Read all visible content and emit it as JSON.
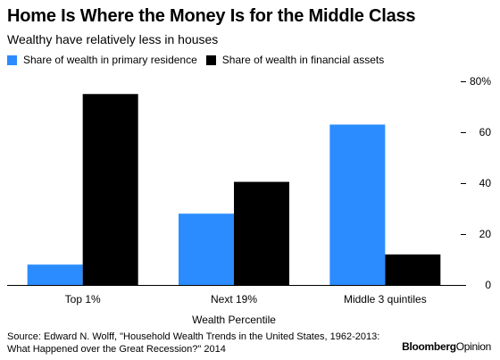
{
  "header": {
    "title": "Home Is Where the Money Is for the Middle Class",
    "subtitle": "Wealthy have relatively less in houses"
  },
  "colors": {
    "residence": "#2b8cff",
    "financial": "#000000"
  },
  "legend": {
    "items": [
      {
        "label": "Share of wealth in primary residence",
        "color": "#2b8cff"
      },
      {
        "label": "Share of wealth in financial assets",
        "color": "#000000"
      }
    ]
  },
  "chart_data": {
    "type": "bar",
    "categories": [
      "Top 1%",
      "Next 19%",
      "Middle 3 quintiles"
    ],
    "series": [
      {
        "name": "Share of wealth in primary residence",
        "values": [
          8,
          28,
          63
        ]
      },
      {
        "name": "Share of wealth in financial assets",
        "values": [
          75,
          40.5,
          12
        ]
      }
    ],
    "xlabel": "Wealth Percentile",
    "ylabel": "",
    "ylim": [
      0,
      80
    ],
    "yticks": [
      0,
      20,
      40,
      60,
      80
    ],
    "ytick_labels": [
      "0",
      "20",
      "40",
      "60",
      "80%"
    ],
    "yaxis_side": "right",
    "legend_position": "top-left",
    "grid": false
  },
  "footer": {
    "source": "Source: Edward N. Wolff, \"Household Wealth Trends in the United States, 1962-2013: What Happened over the Great Recession?\" 2014",
    "brand_bold": "Bloomberg",
    "brand_regular": "Opinion"
  }
}
